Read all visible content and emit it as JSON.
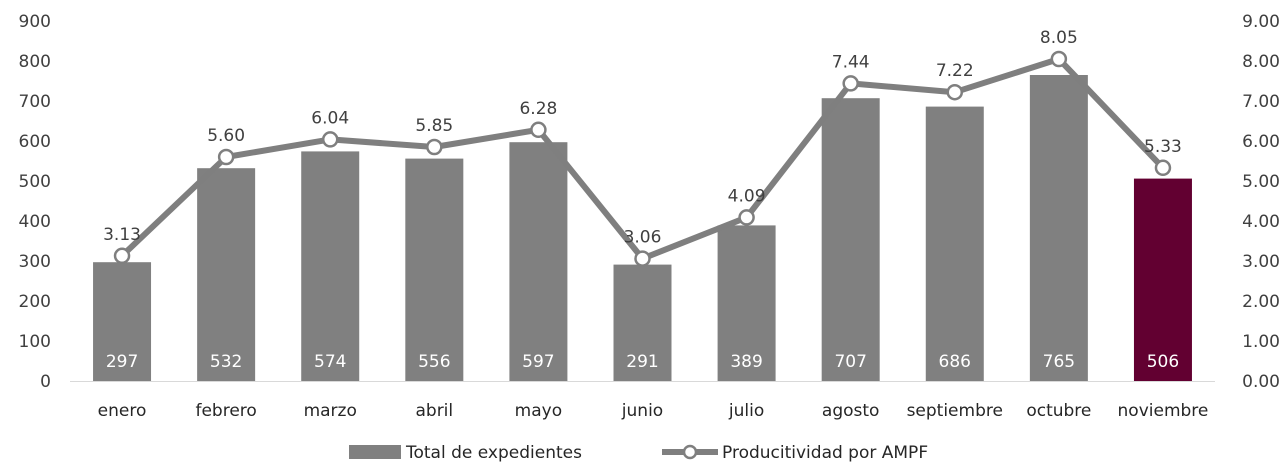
{
  "chart_data": {
    "type": "bar",
    "categories": [
      "enero",
      "febrero",
      "marzo",
      "abril",
      "mayo",
      "junio",
      "julio",
      "agosto",
      "septiembre",
      "octubre",
      "noviembre"
    ],
    "series": [
      {
        "name": "Total de expedientes",
        "type": "bar",
        "axis": "left",
        "values": [
          297,
          532,
          574,
          556,
          597,
          291,
          389,
          707,
          686,
          765,
          506
        ],
        "data_labels": [
          "297",
          "532",
          "574",
          "556",
          "597",
          "291",
          "389",
          "707",
          "686",
          "765",
          "506"
        ],
        "color": "#808080",
        "highlight_index": 10,
        "highlight_color": "#620031"
      },
      {
        "name": "Producitividad por AMPF",
        "type": "line",
        "axis": "right",
        "values": [
          3.13,
          5.6,
          6.04,
          5.85,
          6.28,
          3.06,
          4.09,
          7.44,
          7.22,
          8.05,
          5.33
        ],
        "data_labels": [
          "3.13",
          "5.60",
          "6.04",
          "5.85",
          "6.28",
          "3.06",
          "4.09",
          "7.44",
          "7.22",
          "8.05",
          "5.33"
        ],
        "color": "#7f7f7f",
        "marker_fill": "#ffffff"
      }
    ],
    "y_left": {
      "range": [
        0,
        900
      ],
      "ticks": [
        "0",
        "100",
        "200",
        "300",
        "400",
        "500",
        "600",
        "700",
        "800",
        "900"
      ]
    },
    "y_right": {
      "range": [
        0,
        9
      ],
      "ticks": [
        "0.00",
        "1.00",
        "2.00",
        "3.00",
        "4.00",
        "5.00",
        "6.00",
        "7.00",
        "8.00",
        "9.00"
      ]
    },
    "grid": false,
    "legend": "bottom-center"
  }
}
